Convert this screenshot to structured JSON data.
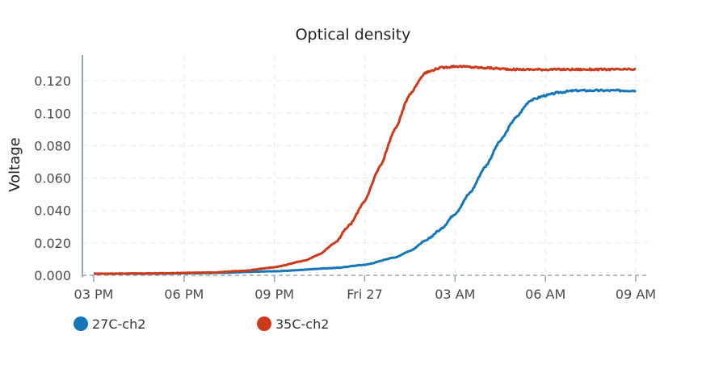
{
  "chart_data": {
    "type": "line",
    "title": "Optical density",
    "xlabel": "",
    "ylabel": "Voltage",
    "x_ticks": [
      "03 PM",
      "06 PM",
      "09 PM",
      "Fri 27",
      "03 AM",
      "06 AM",
      "09 AM"
    ],
    "x_tick_hours": [
      0,
      3,
      6,
      9,
      12,
      15,
      18
    ],
    "xlim_hours": [
      0,
      18
    ],
    "y_ticks": [
      "0.000",
      "0.020",
      "0.040",
      "0.060",
      "0.080",
      "0.100",
      "0.120"
    ],
    "ylim": [
      0,
      0.136
    ],
    "grid": true,
    "legend_position": "bottom-left",
    "series": [
      {
        "name": "27C-ch2",
        "color": "#1576b9",
        "x_hours": [
          0,
          2,
          4,
          6,
          8,
          9,
          10,
          10.5,
          11,
          11.5,
          12,
          12.5,
          13,
          13.5,
          14,
          14.5,
          15,
          15.5,
          16,
          17,
          18
        ],
        "values": [
          0.001,
          0.001,
          0.0015,
          0.0025,
          0.0045,
          0.0065,
          0.011,
          0.015,
          0.021,
          0.028,
          0.038,
          0.051,
          0.067,
          0.083,
          0.097,
          0.108,
          0.111,
          0.113,
          0.114,
          0.114,
          0.114
        ]
      },
      {
        "name": "35C-ch2",
        "color": "#cc3a1a",
        "x_hours": [
          0,
          2,
          4,
          5,
          6,
          7,
          7.5,
          8,
          8.5,
          9,
          9.5,
          10,
          10.5,
          11,
          11.5,
          12,
          13,
          14,
          15,
          16,
          18
        ],
        "values": [
          0.001,
          0.0012,
          0.0018,
          0.0028,
          0.005,
          0.009,
          0.013,
          0.02,
          0.031,
          0.046,
          0.067,
          0.09,
          0.112,
          0.125,
          0.128,
          0.129,
          0.128,
          0.127,
          0.127,
          0.127,
          0.127
        ]
      }
    ]
  }
}
